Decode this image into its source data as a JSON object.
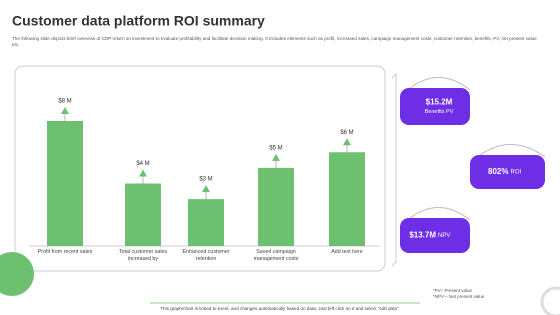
{
  "header": {
    "title": "Customer data platform ROI summary",
    "description": "The following slide depicts brief overview of CDP return on investment to evaluate profitability and facilitate decision making. It includes elements such as profit, increased sales, campaign management costs, customer retention, benefits, PV, net present value etc."
  },
  "chart_data": {
    "type": "bar",
    "categories": [
      "Profit from recent sales",
      "Total customer sales increased by",
      "Enhanced customer retention",
      "Saved campaign management costs",
      "Add text here"
    ],
    "values": [
      8,
      4,
      3,
      5,
      6
    ],
    "value_labels": [
      "$8 M",
      "$4 M",
      "$3 M",
      "$5 M",
      "$6 M"
    ],
    "color": "#6cc070"
  },
  "kpis": [
    {
      "value": "$15.2M",
      "label": "Benefits PV"
    },
    {
      "value": "802%",
      "label": "ROI"
    },
    {
      "value": "$13.7M",
      "label": "NPV"
    }
  ],
  "footnotes": [
    "*PV– Present value",
    "*NPV – Net present value"
  ],
  "note": "This graph/chart is linked to excel, and changes automatically based on data. Just left click on it and select “edit data”."
}
